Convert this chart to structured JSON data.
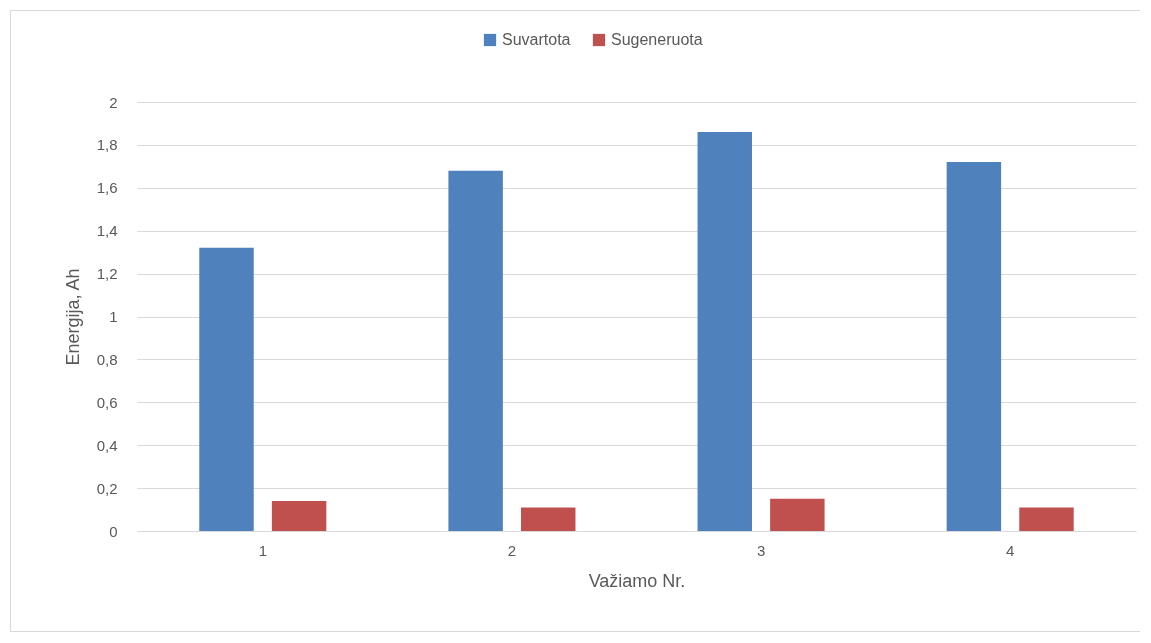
{
  "chart_data": {
    "type": "bar",
    "xlabel": "Važiamo Nr.",
    "ylabel": "Energija, Ah",
    "categories": [
      "1",
      "2",
      "3",
      "4"
    ],
    "series": [
      {
        "name": "Suvartota",
        "color": "#4f81bd",
        "values": [
          1.32,
          1.68,
          1.86,
          1.72
        ]
      },
      {
        "name": "Sugeneruota",
        "color": "#c0504d",
        "values": [
          0.14,
          0.11,
          0.15,
          0.11
        ]
      }
    ],
    "ylim": [
      0,
      2
    ],
    "yticks": [
      0,
      {
        "value": 0.2,
        "label": "0,2"
      },
      {
        "value": 0.4,
        "label": "0,4"
      },
      {
        "value": 0.6,
        "label": "0,6"
      },
      {
        "value": 0.8,
        "label": "0,8"
      },
      1,
      {
        "value": 1.2,
        "label": "1,2"
      },
      {
        "value": 1.4,
        "label": "1,4"
      },
      {
        "value": 1.6,
        "label": "1,6"
      },
      {
        "value": 1.8,
        "label": "1,8"
      },
      2
    ],
    "grid": "y",
    "legend": "top"
  }
}
